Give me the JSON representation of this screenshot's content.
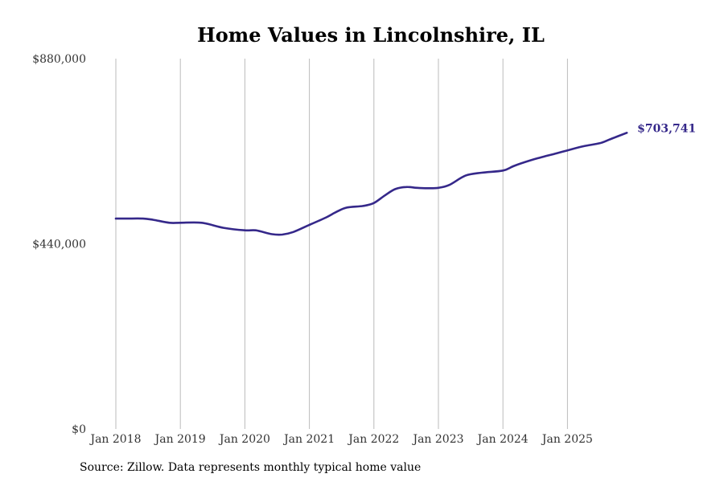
{
  "chart_data": {
    "type": "line",
    "title": "Home Values in Lincolnshire, IL",
    "xlabel": "",
    "ylabel": "",
    "ylim": [
      0,
      880000
    ],
    "yticks": [
      0,
      440000,
      880000
    ],
    "ytick_labels": [
      "$0",
      "$440,000",
      "$880,000"
    ],
    "xlim": [
      2018.0,
      2026.0
    ],
    "xticks": [
      2018,
      2019,
      2020,
      2021,
      2022,
      2023,
      2024,
      2025
    ],
    "xtick_labels": [
      "Jan 2018",
      "Jan 2019",
      "Jan 2020",
      "Jan 2021",
      "Jan 2022",
      "Jan 2023",
      "Jan 2024",
      "Jan 2025"
    ],
    "grid": "vertical",
    "series": [
      {
        "name": "Typical home value",
        "color": "#35288a",
        "points": [
          [
            2018.0,
            500000
          ],
          [
            2018.17,
            500000
          ],
          [
            2018.42,
            500000
          ],
          [
            2018.58,
            497000
          ],
          [
            2018.83,
            490000
          ],
          [
            2019.0,
            490000
          ],
          [
            2019.33,
            490000
          ],
          [
            2019.67,
            478000
          ],
          [
            2020.0,
            472000
          ],
          [
            2020.17,
            472000
          ],
          [
            2020.42,
            463000
          ],
          [
            2020.58,
            462000
          ],
          [
            2020.75,
            468000
          ],
          [
            2021.0,
            485000
          ],
          [
            2021.25,
            502000
          ],
          [
            2021.42,
            516000
          ],
          [
            2021.58,
            526000
          ],
          [
            2021.83,
            530000
          ],
          [
            2022.0,
            537000
          ],
          [
            2022.17,
            555000
          ],
          [
            2022.33,
            570000
          ],
          [
            2022.5,
            575000
          ],
          [
            2022.67,
            573000
          ],
          [
            2022.83,
            572000
          ],
          [
            2023.0,
            573000
          ],
          [
            2023.17,
            580000
          ],
          [
            2023.42,
            602000
          ],
          [
            2023.67,
            609000
          ],
          [
            2024.0,
            614000
          ],
          [
            2024.17,
            625000
          ],
          [
            2024.42,
            638000
          ],
          [
            2024.58,
            645000
          ],
          [
            2024.83,
            655000
          ],
          [
            2025.0,
            662000
          ],
          [
            2025.25,
            672000
          ],
          [
            2025.5,
            679000
          ],
          [
            2025.67,
            689000
          ],
          [
            2025.92,
            703741
          ]
        ],
        "end_label": "$703,741"
      }
    ]
  },
  "footer": {
    "source": "Source: Zillow. Data represents monthly typical home value"
  }
}
